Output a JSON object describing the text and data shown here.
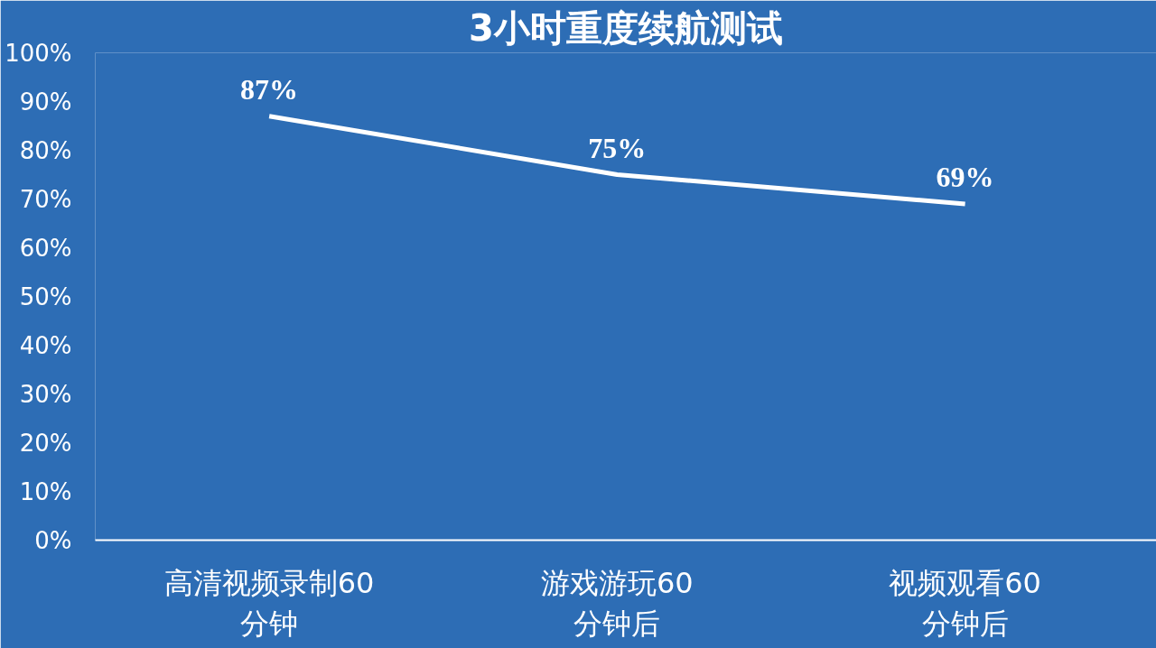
{
  "chart_data": {
    "type": "line",
    "title": "3小时重度续航测试",
    "categories": [
      "高清视频录制60\n分钟",
      "游戏游玩60\n分钟后",
      "视频观看60\n分钟后"
    ],
    "series": [
      {
        "color": "#ffffff",
        "values": [
          87,
          75,
          69
        ],
        "value_labels": [
          "87%",
          "75%",
          "69%"
        ]
      }
    ],
    "ylim": [
      0,
      100
    ],
    "yticks": [
      {
        "value": 0,
        "label": "0%"
      },
      {
        "value": 10,
        "label": "10%"
      },
      {
        "value": 20,
        "label": "20%"
      },
      {
        "value": 30,
        "label": "30%"
      },
      {
        "value": 40,
        "label": "40%"
      },
      {
        "value": 50,
        "label": "50%"
      },
      {
        "value": 60,
        "label": "60%"
      },
      {
        "value": 70,
        "label": "70%"
      },
      {
        "value": 80,
        "label": "80%"
      },
      {
        "value": 90,
        "label": "90%"
      },
      {
        "value": 100,
        "label": "100%"
      }
    ],
    "marker": "none",
    "line_style": "solid"
  }
}
